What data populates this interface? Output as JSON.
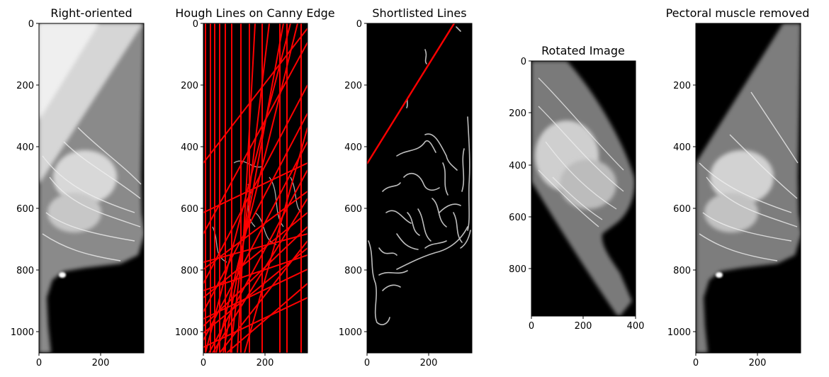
{
  "panels": [
    {
      "id": "right-oriented",
      "title": "Right-oriented",
      "yticks": [
        "0",
        "200",
        "400",
        "600",
        "800",
        "1000"
      ],
      "xticks": [
        "0",
        "200"
      ]
    },
    {
      "id": "hough-lines",
      "title": "Hough Lines on Canny Edge",
      "yticks": [
        "0",
        "200",
        "400",
        "600",
        "800",
        "1000"
      ],
      "xticks": [
        "0",
        "200"
      ]
    },
    {
      "id": "shortlisted-lines",
      "title": "Shortlisted Lines",
      "yticks": [
        "0",
        "200",
        "400",
        "600",
        "800",
        "1000"
      ],
      "xticks": [
        "0",
        "200"
      ]
    },
    {
      "id": "rotated-image",
      "title": "Rotated Image",
      "yticks": [
        "0",
        "200",
        "400",
        "600",
        "800"
      ],
      "xticks": [
        "0",
        "200",
        "400"
      ]
    },
    {
      "id": "pectoral-removed",
      "title": "Pectoral muscle removed",
      "yticks": [
        "200",
        "400",
        "600",
        "800",
        "1000"
      ],
      "xticks": [
        "0",
        "200"
      ]
    }
  ],
  "colors": {
    "line_highlight": "#ff0000",
    "edge": "#bdbdbd",
    "tissue": "#ffffff",
    "background": "#000000"
  }
}
